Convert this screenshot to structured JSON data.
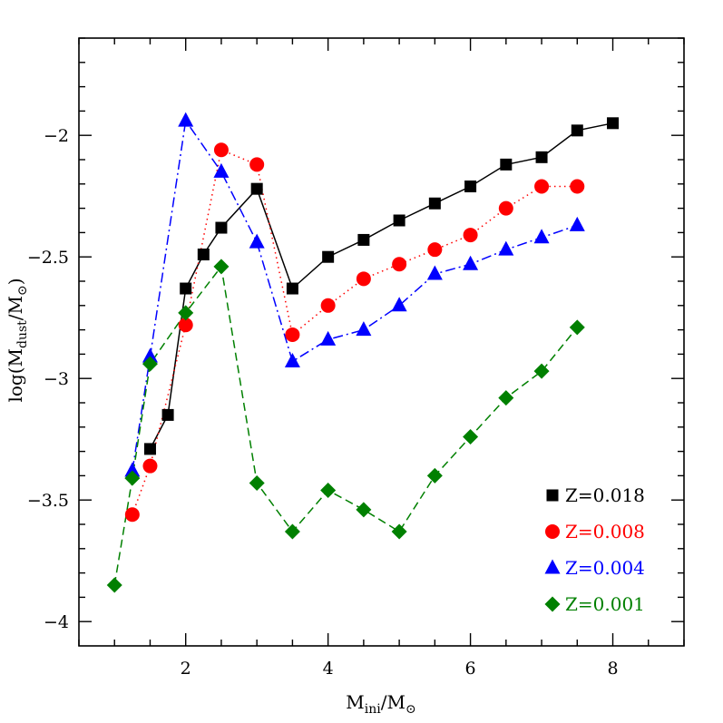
{
  "chart_data": {
    "type": "line",
    "xlabel": {
      "main": "M",
      "sub": "ini",
      "rest": "/M",
      "sun": "⊙"
    },
    "ylabel": {
      "pre": "log(M",
      "sub": "dust",
      "rest": "/M",
      "sun": "⊙",
      "post": ")"
    },
    "xlim": [
      0.5,
      9.0
    ],
    "ylim": [
      -4.1,
      -1.6
    ],
    "x_major_ticks": [
      2,
      4,
      6,
      8
    ],
    "x_tick_labels": [
      "2",
      "4",
      "6",
      "8"
    ],
    "y_major_ticks": [
      -2,
      -2.5,
      -3,
      -3.5,
      -4
    ],
    "y_tick_labels": [
      "−2",
      "−2.5",
      "−3",
      "−3.5",
      "−4"
    ],
    "x_minor_step": 0.5,
    "y_minor_step": 0.1,
    "grid": false,
    "legend_position": "lower-right",
    "series": [
      {
        "name": "Z=0.018",
        "color": "#000000",
        "marker": "square",
        "line_style": "solid",
        "x": [
          1.5,
          1.75,
          2.0,
          2.25,
          2.5,
          3.0,
          3.5,
          4.0,
          4.5,
          5.0,
          5.5,
          6.0,
          6.5,
          7.0,
          7.5,
          8.0
        ],
        "y": [
          -3.29,
          -3.15,
          -2.63,
          -2.49,
          -2.38,
          -2.22,
          -2.63,
          -2.5,
          -2.43,
          -2.35,
          -2.28,
          -2.21,
          -2.12,
          -2.09,
          -1.98,
          -1.95
        ]
      },
      {
        "name": "Z=0.008",
        "color": "#ff0000",
        "marker": "circle",
        "line_style": "dotted",
        "x": [
          1.25,
          1.5,
          2.0,
          2.5,
          3.0,
          3.5,
          4.0,
          4.5,
          5.0,
          5.5,
          6.0,
          6.5,
          7.0,
          7.5
        ],
        "y": [
          -3.56,
          -3.36,
          -2.78,
          -2.06,
          -2.12,
          -2.82,
          -2.7,
          -2.59,
          -2.53,
          -2.47,
          -2.41,
          -2.3,
          -2.21,
          -2.21
        ]
      },
      {
        "name": "Z=0.004",
        "color": "#0000ff",
        "marker": "triangle",
        "line_style": "dashdot",
        "x": [
          1.25,
          1.5,
          2.0,
          2.5,
          3.0,
          3.5,
          4.0,
          4.5,
          5.0,
          5.5,
          6.0,
          6.5,
          7.0,
          7.5
        ],
        "y": [
          -3.38,
          -2.91,
          -1.94,
          -2.15,
          -2.44,
          -2.93,
          -2.84,
          -2.8,
          -2.7,
          -2.57,
          -2.53,
          -2.47,
          -2.42,
          -2.37
        ]
      },
      {
        "name": "Z=0.001",
        "color": "#008000",
        "marker": "diamond",
        "line_style": "dashed",
        "x": [
          1.0,
          1.25,
          1.5,
          2.0,
          2.5,
          3.0,
          3.5,
          4.0,
          4.5,
          5.0,
          5.5,
          6.0,
          6.5,
          7.0,
          7.5
        ],
        "y": [
          -3.85,
          -3.41,
          -2.94,
          -2.73,
          -2.54,
          -3.43,
          -3.63,
          -3.46,
          -3.54,
          -3.63,
          -3.4,
          -3.24,
          -3.08,
          -2.97,
          -2.79
        ]
      }
    ]
  }
}
